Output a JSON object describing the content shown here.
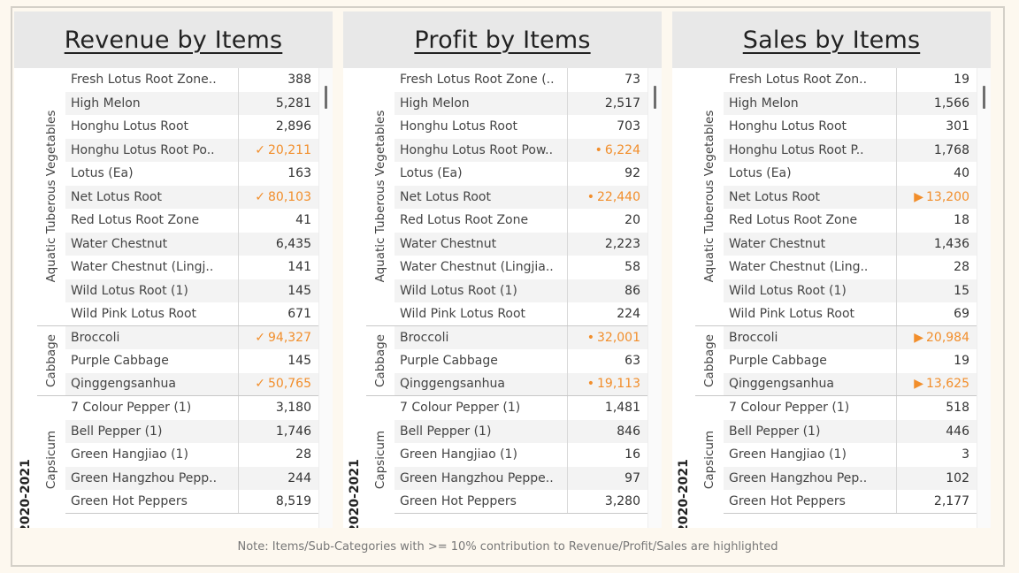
{
  "panels": [
    {
      "title": "Revenue by Items",
      "year": "2020-2021",
      "marker": "✓",
      "categories": [
        {
          "label": "Aquatic Tuberous Vegetables",
          "items": [
            {
              "name": "Fresh Lotus Root Zone..",
              "value": "388"
            },
            {
              "name": "High Melon",
              "value": "5,281"
            },
            {
              "name": "Honghu Lotus Root",
              "value": "2,896"
            },
            {
              "name": "Honghu Lotus Root Po..",
              "value": "20,211",
              "highlight": true
            },
            {
              "name": "Lotus (Ea)",
              "value": "163"
            },
            {
              "name": "Net Lotus Root",
              "value": "80,103",
              "highlight": true
            },
            {
              "name": "Red Lotus Root Zone",
              "value": "41"
            },
            {
              "name": "Water Chestnut",
              "value": "6,435"
            },
            {
              "name": "Water Chestnut (Lingj..",
              "value": "141"
            },
            {
              "name": "Wild Lotus Root (1)",
              "value": "145"
            },
            {
              "name": "Wild Pink Lotus Root",
              "value": "671"
            }
          ]
        },
        {
          "label": "Cabbage",
          "items": [
            {
              "name": "Broccoli",
              "value": "94,327",
              "highlight": true
            },
            {
              "name": "Purple Cabbage",
              "value": "145"
            },
            {
              "name": "Qinggengsanhua",
              "value": "50,765",
              "highlight": true
            }
          ]
        },
        {
          "label": "Capsicum",
          "items": [
            {
              "name": "7 Colour Pepper (1)",
              "value": "3,180"
            },
            {
              "name": "Bell Pepper (1)",
              "value": "1,746"
            },
            {
              "name": "Green Hangjiao (1)",
              "value": "28"
            },
            {
              "name": "Green Hangzhou Pepp..",
              "value": "244"
            },
            {
              "name": "Green Hot Peppers",
              "value": "8,519"
            }
          ]
        }
      ]
    },
    {
      "title": "Profit by Items",
      "year": "2020-2021",
      "marker": "•",
      "categories": [
        {
          "label": "Aquatic Tuberous Vegetables",
          "items": [
            {
              "name": "Fresh Lotus Root Zone (..",
              "value": "73"
            },
            {
              "name": "High Melon",
              "value": "2,517"
            },
            {
              "name": "Honghu Lotus Root",
              "value": "703"
            },
            {
              "name": "Honghu Lotus Root Pow..",
              "value": "6,224",
              "highlight": true
            },
            {
              "name": "Lotus (Ea)",
              "value": "92"
            },
            {
              "name": "Net Lotus Root",
              "value": "22,440",
              "highlight": true
            },
            {
              "name": "Red Lotus Root Zone",
              "value": "20"
            },
            {
              "name": "Water Chestnut",
              "value": "2,223"
            },
            {
              "name": "Water Chestnut (Lingjia..",
              "value": "58"
            },
            {
              "name": "Wild Lotus Root (1)",
              "value": "86"
            },
            {
              "name": "Wild Pink Lotus Root",
              "value": "224"
            }
          ]
        },
        {
          "label": "Cabbage",
          "items": [
            {
              "name": "Broccoli",
              "value": "32,001",
              "highlight": true
            },
            {
              "name": "Purple Cabbage",
              "value": "63"
            },
            {
              "name": "Qinggengsanhua",
              "value": "19,113",
              "highlight": true
            }
          ]
        },
        {
          "label": "Capsicum",
          "items": [
            {
              "name": "7 Colour Pepper (1)",
              "value": "1,481"
            },
            {
              "name": "Bell Pepper (1)",
              "value": "846"
            },
            {
              "name": "Green Hangjiao (1)",
              "value": "16"
            },
            {
              "name": "Green Hangzhou Peppe..",
              "value": "97"
            },
            {
              "name": "Green Hot Peppers",
              "value": "3,280"
            }
          ]
        }
      ]
    },
    {
      "title": "Sales by Items",
      "year": "2020-2021",
      "marker": "▶",
      "categories": [
        {
          "label": "Aquatic Tuberous Vegetables",
          "items": [
            {
              "name": "Fresh Lotus Root Zon..",
              "value": "19"
            },
            {
              "name": "High Melon",
              "value": "1,566"
            },
            {
              "name": "Honghu Lotus Root",
              "value": "301"
            },
            {
              "name": "Honghu Lotus Root P..",
              "value": "1,768"
            },
            {
              "name": "Lotus (Ea)",
              "value": "40"
            },
            {
              "name": "Net Lotus Root",
              "value": "13,200",
              "highlight": true
            },
            {
              "name": "Red Lotus Root Zone",
              "value": "18"
            },
            {
              "name": "Water Chestnut",
              "value": "1,436"
            },
            {
              "name": "Water Chestnut (Ling..",
              "value": "28"
            },
            {
              "name": "Wild Lotus Root (1)",
              "value": "15"
            },
            {
              "name": "Wild Pink Lotus Root",
              "value": "69"
            }
          ]
        },
        {
          "label": "Cabbage",
          "items": [
            {
              "name": "Broccoli",
              "value": "20,984",
              "highlight": true
            },
            {
              "name": "Purple Cabbage",
              "value": "19"
            },
            {
              "name": "Qinggengsanhua",
              "value": "13,625",
              "highlight": true
            }
          ]
        },
        {
          "label": "Capsicum",
          "items": [
            {
              "name": "7 Colour Pepper (1)",
              "value": "518"
            },
            {
              "name": "Bell Pepper (1)",
              "value": "446"
            },
            {
              "name": "Green Hangjiao (1)",
              "value": "3"
            },
            {
              "name": "Green Hangzhou Pep..",
              "value": "102"
            },
            {
              "name": "Green Hot Peppers",
              "value": "2,177"
            }
          ]
        }
      ]
    }
  ],
  "highlight_color": "#f28e2b",
  "note": "Note: Items/Sub-Categories with >= 10% contribution to Revenue/Profit/Sales are highlighted"
}
